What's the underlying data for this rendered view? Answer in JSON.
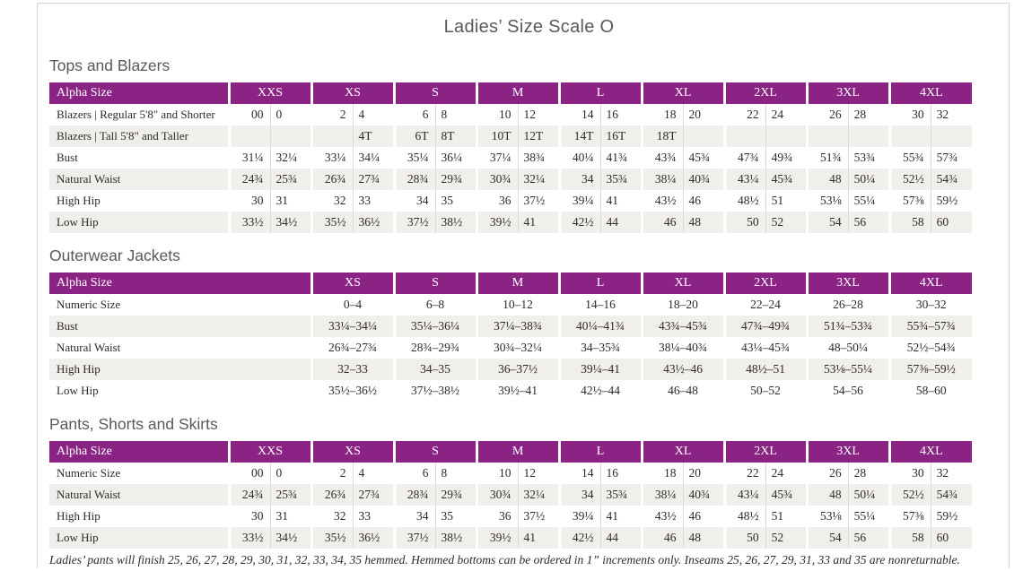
{
  "page": {
    "title": "Ladies’ Size Scale O",
    "footnote": "Ladies’ pants will finish 25, 26, 27, 28, 29, 30, 31, 32, 33, 34, 35 hemmed. Hemmed bottoms can be ordered in 1” increments only. Inseams 25, 26, 27, 29, 31, 33 and 35 are nonreturnable."
  },
  "colors": {
    "header_purple": "#8A2383",
    "row_stripe": "#F1EFEC",
    "heading_gray": "#595959",
    "body_text": "#2E2A26",
    "page_border": "#D8D5D1"
  },
  "tables": [
    {
      "section_title": "Tops and Blazers",
      "header_label": "Alpha Size",
      "split_columns": true,
      "sizes": [
        "XXS",
        "XS",
        "S",
        "M",
        "L",
        "XL",
        "2XL",
        "3XL",
        "4XL"
      ],
      "rows": [
        {
          "label": "Blazers  |  Regular 5'8\" and Shorter",
          "values": [
            "00",
            "0",
            "2",
            "4",
            "6",
            "8",
            "10",
            "12",
            "14",
            "16",
            "18",
            "20",
            "22",
            "24",
            "26",
            "28",
            "30",
            "32"
          ]
        },
        {
          "label": "Blazers  |  Tall 5'8\" and Taller",
          "values": [
            "",
            "",
            "",
            "4T",
            "6T",
            "8T",
            "10T",
            "12T",
            "14T",
            "16T",
            "18T",
            "",
            "",
            "",
            "",
            "",
            "",
            ""
          ]
        },
        {
          "label": "Bust",
          "values": [
            "31¼",
            "32¼",
            "33¼",
            "34¼",
            "35¼",
            "36¼",
            "37¼",
            "38¾",
            "40¼",
            "41¾",
            "43¾",
            "45¾",
            "47¾",
            "49¾",
            "51¾",
            "53¾",
            "55¾",
            "57¾"
          ]
        },
        {
          "label": "Natural Waist",
          "values": [
            "24¾",
            "25¾",
            "26¾",
            "27¾",
            "28¾",
            "29¾",
            "30¾",
            "32¼",
            "34",
            "35¾",
            "38¼",
            "40¾",
            "43¼",
            "45¾",
            "48",
            "50¼",
            "52½",
            "54¾"
          ]
        },
        {
          "label": "High Hip",
          "values": [
            "30",
            "31",
            "32",
            "33",
            "34",
            "35",
            "36",
            "37½",
            "39¼",
            "41",
            "43½",
            "46",
            "48½",
            "51",
            "53⅛",
            "55¼",
            "57⅜",
            "59½"
          ]
        },
        {
          "label": "Low Hip",
          "values": [
            "33½",
            "34½",
            "35½",
            "36½",
            "37½",
            "38½",
            "39½",
            "41",
            "42½",
            "44",
            "46",
            "48",
            "50",
            "52",
            "54",
            "56",
            "58",
            "60"
          ]
        }
      ]
    },
    {
      "section_title": "Outerwear Jackets",
      "header_label": "Alpha Size",
      "split_columns": false,
      "sizes": [
        "XS",
        "S",
        "M",
        "L",
        "XL",
        "2XL",
        "3XL",
        "4XL"
      ],
      "rows": [
        {
          "label": "Numeric Size",
          "values": [
            "0–4",
            "6–8",
            "10–12",
            "14–16",
            "18–20",
            "22–24",
            "26–28",
            "30–32"
          ]
        },
        {
          "label": "Bust",
          "values": [
            "33¼–34¼",
            "35¼–36¼",
            "37¼–38¾",
            "40¼–41¾",
            "43¾–45¾",
            "47¾–49¾",
            "51¾–53¾",
            "55¾–57¾"
          ]
        },
        {
          "label": "Natural Waist",
          "values": [
            "26¾–27¾",
            "28¾–29¾",
            "30¾–32¼",
            "34–35¾",
            "38¼–40¾",
            "43¼–45¾",
            "48–50¼",
            "52½–54¾"
          ]
        },
        {
          "label": "High Hip",
          "values": [
            "32–33",
            "34–35",
            "36–37½",
            "39¼–41",
            "43½–46",
            "48½–51",
            "53⅛–55¼",
            "57⅜–59½"
          ]
        },
        {
          "label": "Low Hip",
          "values": [
            "35½–36½",
            "37½–38½",
            "39½–41",
            "42½–44",
            "46–48",
            "50–52",
            "54–56",
            "58–60"
          ]
        }
      ]
    },
    {
      "section_title": "Pants, Shorts and Skirts",
      "header_label": "Alpha Size",
      "split_columns": true,
      "sizes": [
        "XXS",
        "XS",
        "S",
        "M",
        "L",
        "XL",
        "2XL",
        "3XL",
        "4XL"
      ],
      "rows": [
        {
          "label": "Numeric Size",
          "values": [
            "00",
            "0",
            "2",
            "4",
            "6",
            "8",
            "10",
            "12",
            "14",
            "16",
            "18",
            "20",
            "22",
            "24",
            "26",
            "28",
            "30",
            "32"
          ]
        },
        {
          "label": "Natural Waist",
          "values": [
            "24¾",
            "25¾",
            "26¾",
            "27¾",
            "28¾",
            "29¾",
            "30¾",
            "32¼",
            "34",
            "35¾",
            "38¼",
            "40¾",
            "43¼",
            "45¾",
            "48",
            "50¼",
            "52½",
            "54¾"
          ]
        },
        {
          "label": "High Hip",
          "values": [
            "30",
            "31",
            "32",
            "33",
            "34",
            "35",
            "36",
            "37½",
            "39¼",
            "41",
            "43½",
            "46",
            "48½",
            "51",
            "53⅛",
            "55¼",
            "57⅜",
            "59½"
          ]
        },
        {
          "label": "Low Hip",
          "values": [
            "33½",
            "34½",
            "35½",
            "36½",
            "37½",
            "38½",
            "39½",
            "41",
            "42½",
            "44",
            "46",
            "48",
            "50",
            "52",
            "54",
            "56",
            "58",
            "60"
          ]
        }
      ]
    }
  ]
}
